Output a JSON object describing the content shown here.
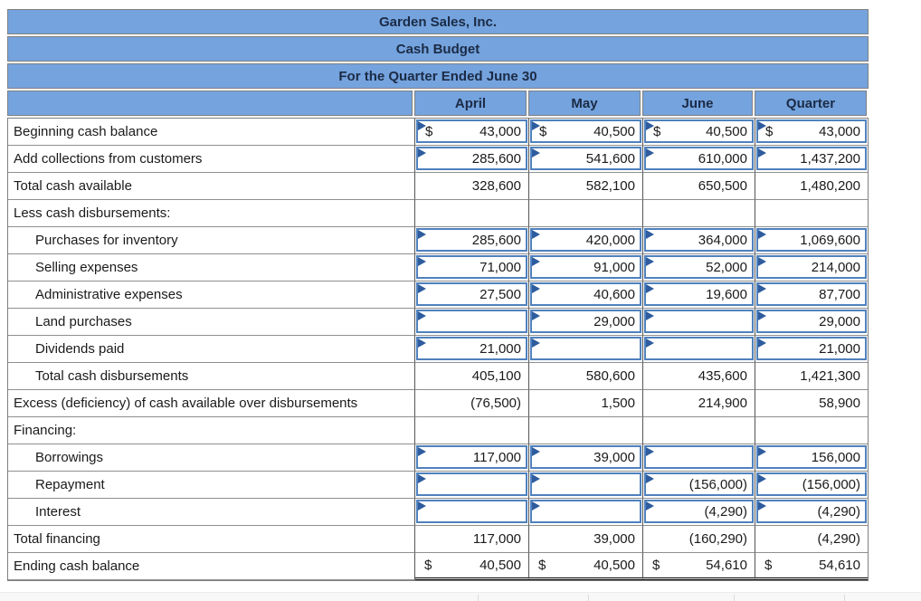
{
  "report": {
    "company": "Garden Sales, Inc.",
    "statement": "Cash Budget",
    "period": "For the Quarter Ended June 30"
  },
  "columns": [
    "April",
    "May",
    "June",
    "Quarter"
  ],
  "colors": {
    "header_bg": "#74A3DE",
    "input_border": "#4F81BD",
    "input_marker": "#2E5C9E"
  },
  "rows": [
    {
      "label": "Beginning cash balance",
      "indent": false,
      "cells": [
        {
          "kind": "input",
          "dollar": "$",
          "value": "43,000"
        },
        {
          "kind": "input",
          "dollar": "$",
          "value": "40,500"
        },
        {
          "kind": "input",
          "dollar": "$",
          "value": "40,500"
        },
        {
          "kind": "input",
          "dollar": "$",
          "value": "43,000"
        }
      ]
    },
    {
      "label": "Add collections from customers",
      "indent": false,
      "cells": [
        {
          "kind": "input",
          "value": "285,600"
        },
        {
          "kind": "input",
          "value": "541,600"
        },
        {
          "kind": "input",
          "value": "610,000"
        },
        {
          "kind": "input",
          "value": "1,437,200"
        }
      ]
    },
    {
      "label": "Total cash available",
      "indent": false,
      "cells": [
        {
          "kind": "plain",
          "value": "328,600"
        },
        {
          "kind": "plain",
          "value": "582,100"
        },
        {
          "kind": "plain",
          "value": "650,500"
        },
        {
          "kind": "plain",
          "value": "1,480,200"
        }
      ]
    },
    {
      "label": "Less cash disbursements:",
      "indent": false,
      "cells": [
        {
          "kind": "plain",
          "value": ""
        },
        {
          "kind": "plain",
          "value": ""
        },
        {
          "kind": "plain",
          "value": ""
        },
        {
          "kind": "plain",
          "value": ""
        }
      ]
    },
    {
      "label": "Purchases for inventory",
      "indent": true,
      "cells": [
        {
          "kind": "input",
          "value": "285,600"
        },
        {
          "kind": "input",
          "value": "420,000"
        },
        {
          "kind": "input",
          "value": "364,000"
        },
        {
          "kind": "input",
          "value": "1,069,600"
        }
      ]
    },
    {
      "label": "Selling expenses",
      "indent": true,
      "cells": [
        {
          "kind": "input",
          "value": "71,000"
        },
        {
          "kind": "input",
          "value": "91,000"
        },
        {
          "kind": "input",
          "value": "52,000"
        },
        {
          "kind": "input",
          "value": "214,000"
        }
      ]
    },
    {
      "label": "Administrative expenses",
      "indent": true,
      "cells": [
        {
          "kind": "input",
          "value": "27,500"
        },
        {
          "kind": "input",
          "value": "40,600"
        },
        {
          "kind": "input",
          "value": "19,600"
        },
        {
          "kind": "input",
          "value": "87,700"
        }
      ]
    },
    {
      "label": "Land purchases",
      "indent": true,
      "cells": [
        {
          "kind": "input",
          "value": ""
        },
        {
          "kind": "input",
          "value": "29,000"
        },
        {
          "kind": "input",
          "value": ""
        },
        {
          "kind": "input",
          "value": "29,000"
        }
      ]
    },
    {
      "label": "Dividends paid",
      "indent": true,
      "cells": [
        {
          "kind": "input",
          "value": "21,000"
        },
        {
          "kind": "input",
          "value": ""
        },
        {
          "kind": "input",
          "value": ""
        },
        {
          "kind": "input",
          "value": "21,000"
        }
      ]
    },
    {
      "label": "Total cash disbursements",
      "indent": true,
      "cells": [
        {
          "kind": "plain",
          "value": "405,100"
        },
        {
          "kind": "plain",
          "value": "580,600"
        },
        {
          "kind": "plain",
          "value": "435,600"
        },
        {
          "kind": "plain",
          "value": "1,421,300"
        }
      ]
    },
    {
      "label": "Excess (deficiency) of cash available over disbursements",
      "indent": false,
      "cells": [
        {
          "kind": "plain",
          "value": "(76,500)"
        },
        {
          "kind": "plain",
          "value": "1,500"
        },
        {
          "kind": "plain",
          "value": "214,900"
        },
        {
          "kind": "plain",
          "value": "58,900"
        }
      ]
    },
    {
      "label": "Financing:",
      "indent": false,
      "cells": [
        {
          "kind": "plain",
          "value": ""
        },
        {
          "kind": "plain",
          "value": ""
        },
        {
          "kind": "plain",
          "value": ""
        },
        {
          "kind": "plain",
          "value": ""
        }
      ]
    },
    {
      "label": "Borrowings",
      "indent": true,
      "cells": [
        {
          "kind": "input",
          "value": "117,000"
        },
        {
          "kind": "input",
          "value": "39,000"
        },
        {
          "kind": "input",
          "value": ""
        },
        {
          "kind": "input",
          "value": "156,000"
        }
      ]
    },
    {
      "label": "Repayment",
      "indent": true,
      "cells": [
        {
          "kind": "input",
          "value": ""
        },
        {
          "kind": "input",
          "value": ""
        },
        {
          "kind": "input",
          "value": "(156,000)"
        },
        {
          "kind": "input",
          "value": "(156,000)"
        }
      ]
    },
    {
      "label": "Interest",
      "indent": true,
      "cells": [
        {
          "kind": "input",
          "value": ""
        },
        {
          "kind": "input",
          "value": ""
        },
        {
          "kind": "input",
          "value": "(4,290)"
        },
        {
          "kind": "input",
          "value": "(4,290)"
        }
      ]
    },
    {
      "label": "Total financing",
      "indent": false,
      "cells": [
        {
          "kind": "plain",
          "value": "117,000"
        },
        {
          "kind": "plain",
          "value": "39,000"
        },
        {
          "kind": "plain",
          "value": "(160,290)"
        },
        {
          "kind": "plain",
          "value": "(4,290)"
        }
      ]
    },
    {
      "label": "Ending cash balance",
      "indent": false,
      "double_underline": true,
      "cells": [
        {
          "kind": "plain",
          "dollar": "$",
          "value": "40,500"
        },
        {
          "kind": "plain",
          "dollar": "$",
          "value": "40,500"
        },
        {
          "kind": "plain",
          "dollar": "$",
          "value": "54,610"
        },
        {
          "kind": "plain",
          "dollar": "$",
          "value": "54,610"
        }
      ]
    }
  ]
}
